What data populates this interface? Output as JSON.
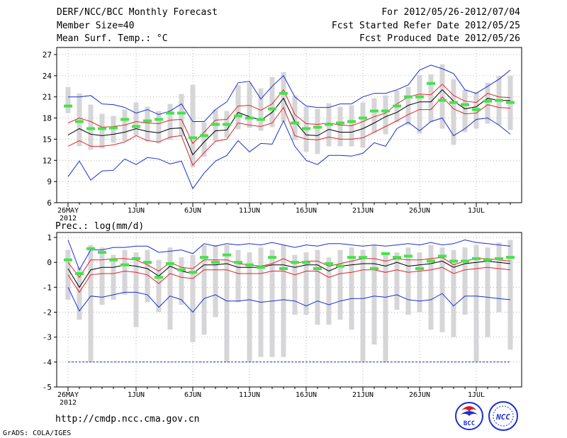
{
  "header": {
    "title_left": "DERF/NCC/BCC Monthly Forecast",
    "member_size": "Member Size=40",
    "var_label": "Mean Surf. Temp.: °C",
    "period": "For 2012/05/26-2012/07/04",
    "start_date": "Fcst Started Refer Date 2012/05/25",
    "produced_date": "Fcst Produced Date 2012/05/26"
  },
  "footer": {
    "url": "http://cmdp.ncc.cma.gov.cn",
    "credit": "GrADS: COLA/IGES",
    "logo_bcc": "BCC",
    "logo_ncc": "NCC"
  },
  "colors": {
    "box": "#d6d6d8",
    "mean": "#000000",
    "std": "#e0242b",
    "minmax": "#1a2fd0",
    "obs": "#44e34a",
    "bg": "#ffffff"
  },
  "chart_data": [
    {
      "type": "line",
      "title": "Mean Surf. Temp.: °C",
      "xlabel": "",
      "ylabel": "°C",
      "x_tick_labels": [
        "26MAY",
        "1JUN",
        "6JUN",
        "11JUN",
        "16JUN",
        "21JUN",
        "26JUN",
        "1JUL"
      ],
      "x_tick_days": [
        0,
        6,
        11,
        16,
        21,
        26,
        31,
        36
      ],
      "year_label": "2012",
      "xlim": [
        -1,
        40
      ],
      "yticks": [
        6,
        9,
        12,
        15,
        18,
        21,
        24,
        27
      ],
      "ylim": [
        6,
        28
      ],
      "x": [
        0,
        1,
        2,
        3,
        4,
        5,
        6,
        7,
        8,
        9,
        10,
        11,
        12,
        13,
        14,
        15,
        16,
        17,
        18,
        19,
        20,
        21,
        22,
        23,
        24,
        25,
        26,
        27,
        28,
        29,
        30,
        31,
        32,
        33,
        34,
        35,
        36,
        37,
        38,
        39
      ],
      "series": [
        {
          "name": "Ensemble max",
          "values": [
            21.0,
            21.0,
            21.2,
            20.0,
            19.9,
            19.5,
            18.7,
            19.2,
            18.5,
            19.0,
            20.0,
            17.5,
            17.5,
            19.2,
            20.3,
            23.0,
            23.2,
            20.7,
            22.5,
            24.0,
            21.0,
            19.7,
            19.5,
            19.5,
            20.0,
            20.0,
            21.0,
            21.5,
            21.5,
            22.0,
            22.7,
            24.8,
            25.5,
            25.0,
            24.3,
            22.0,
            21.5,
            22.5,
            23.5,
            24.8
          ]
        },
        {
          "name": "Mean + std",
          "values": [
            17.3,
            18.0,
            17.5,
            16.7,
            16.8,
            17.0,
            17.5,
            17.3,
            17.2,
            17.7,
            17.8,
            14.4,
            16.0,
            17.7,
            17.8,
            19.7,
            19.8,
            19.1,
            20.0,
            22.0,
            18.5,
            17.2,
            17.1,
            17.3,
            17.0,
            16.9,
            17.5,
            18.2,
            18.7,
            20.0,
            21.0,
            21.4,
            21.3,
            22.8,
            21.2,
            20.4,
            20.2,
            21.5,
            21.0,
            20.9
          ]
        },
        {
          "name": "Ensemble mean",
          "values": [
            15.6,
            16.5,
            15.7,
            15.5,
            15.7,
            16.0,
            16.5,
            16.1,
            15.9,
            16.5,
            16.6,
            12.8,
            14.6,
            16.2,
            16.3,
            18.8,
            18.2,
            17.7,
            18.8,
            20.8,
            17.5,
            15.6,
            15.5,
            16.4,
            16.0,
            16.0,
            16.5,
            17.3,
            18.2,
            18.8,
            19.8,
            20.3,
            20.3,
            22.0,
            20.4,
            19.3,
            19.6,
            20.8,
            20.5,
            20.5
          ]
        },
        {
          "name": "Mean - std",
          "values": [
            14.0,
            14.8,
            14.0,
            14.0,
            14.2,
            14.6,
            15.5,
            14.8,
            14.6,
            15.3,
            15.5,
            11.3,
            13.1,
            14.7,
            15.0,
            17.3,
            17.0,
            16.8,
            17.3,
            19.5,
            15.5,
            15.0,
            14.9,
            15.3,
            15.0,
            15.0,
            15.2,
            16.0,
            16.8,
            17.6,
            18.5,
            19.2,
            19.2,
            21.0,
            19.3,
            18.6,
            18.7,
            19.9,
            19.5,
            19.4
          ]
        },
        {
          "name": "Ensemble min",
          "values": [
            9.7,
            11.9,
            9.2,
            10.5,
            10.6,
            12.2,
            11.4,
            12.4,
            12.2,
            11.5,
            11.9,
            8.0,
            10.2,
            11.9,
            12.7,
            14.8,
            13.2,
            14.4,
            14.3,
            17.6,
            14.0,
            12.0,
            11.4,
            12.7,
            12.7,
            12.6,
            13.0,
            14.5,
            14.0,
            16.5,
            17.4,
            16.2,
            17.5,
            18.0,
            15.5,
            16.5,
            17.8,
            18.0,
            17.0,
            15.7
          ]
        },
        {
          "name": "Box upper",
          "values": [
            22.4,
            21.5,
            19.9,
            18.6,
            18.3,
            19.2,
            20.2,
            19.6,
            19.0,
            20.0,
            21.4,
            22.7,
            17.4,
            19.2,
            19.0,
            22.7,
            23.0,
            22.2,
            23.8,
            24.5,
            21.2,
            19.6,
            19.3,
            20.1,
            19.6,
            19.8,
            20.2,
            20.8,
            21.2,
            21.9,
            22.4,
            24.1,
            24.2,
            25.6,
            23.5,
            22.0,
            21.7,
            23.0,
            24.0,
            24.0
          ]
        },
        {
          "name": "Box lower",
          "values": [
            18.7,
            14.0,
            13.5,
            13.7,
            14.5,
            14.7,
            15.5,
            14.7,
            14.4,
            14.9,
            15.4,
            11.0,
            12.5,
            14.7,
            15.2,
            16.4,
            16.6,
            16.2,
            16.7,
            17.5,
            14.9,
            13.2,
            12.9,
            14.0,
            14.0,
            14.0,
            13.8,
            15.9,
            15.7,
            17.4,
            17.0,
            15.8,
            17.4,
            16.5,
            14.2,
            16.0,
            16.5,
            17.2,
            17.0,
            16.3
          ]
        },
        {
          "name": "Observed/forecast marker",
          "values": [
            19.7,
            17.5,
            16.5,
            16.5,
            16.6,
            17.8,
            16.8,
            17.6,
            17.8,
            18.7,
            18.7,
            15.2,
            15.5,
            17.1,
            17.1,
            18.3,
            18.0,
            17.8,
            19.3,
            21.5,
            17.3,
            16.5,
            16.7,
            17.1,
            17.3,
            17.5,
            18.0,
            19.0,
            19.0,
            19.7,
            21.0,
            21.0,
            22.9,
            20.5,
            20.2,
            19.9,
            19.2,
            20.4,
            20.5,
            20.2
          ]
        }
      ]
    },
    {
      "type": "line",
      "title": "Prec.: log(mm/d)",
      "xlabel": "",
      "ylabel": "log(mm/d)",
      "x_tick_labels": [
        "26MAY",
        "1JUN",
        "6JUN",
        "11JUN",
        "16JUN",
        "21JUN",
        "26JUN",
        "1JUL"
      ],
      "x_tick_days": [
        0,
        6,
        11,
        16,
        21,
        26,
        31,
        36
      ],
      "year_label": "2012",
      "xlim": [
        -1,
        40
      ],
      "yticks": [
        -5,
        -4,
        -3,
        -2,
        -1,
        0,
        1
      ],
      "ylim": [
        -5,
        1.2
      ],
      "x": [
        0,
        1,
        2,
        3,
        4,
        5,
        6,
        7,
        8,
        9,
        10,
        11,
        12,
        13,
        14,
        15,
        16,
        17,
        18,
        19,
        20,
        21,
        22,
        23,
        24,
        25,
        26,
        27,
        28,
        29,
        30,
        31,
        32,
        33,
        34,
        35,
        36,
        37,
        38,
        39
      ],
      "series": [
        {
          "name": "Ensemble max",
          "values": [
            0.9,
            -0.3,
            0.5,
            0.5,
            0.6,
            0.6,
            0.65,
            0.65,
            0.4,
            0.45,
            0.5,
            0.35,
            0.75,
            0.65,
            0.75,
            0.7,
            0.75,
            0.7,
            0.8,
            0.7,
            0.6,
            0.7,
            0.65,
            0.75,
            0.75,
            0.7,
            0.65,
            0.7,
            0.65,
            0.7,
            0.75,
            0.7,
            0.8,
            0.7,
            0.75,
            0.9,
            0.8,
            0.75,
            0.7,
            0.65
          ]
        },
        {
          "name": "Mean + std",
          "values": [
            0.0,
            -0.6,
            0.1,
            0.1,
            0.15,
            0.15,
            0.1,
            -0.1,
            -0.35,
            0.0,
            -0.2,
            -0.25,
            0.1,
            0.1,
            0.1,
            -0.05,
            -0.1,
            -0.15,
            -0.05,
            0.15,
            -0.05,
            0.05,
            0.05,
            -0.15,
            -0.05,
            0.05,
            0.15,
            0.15,
            0.05,
            0.15,
            0.1,
            0.1,
            0.15,
            0.2,
            -0.1,
            0.05,
            0.15,
            0.15,
            0.1,
            0.05
          ]
        },
        {
          "name": "Ensemble mean",
          "values": [
            -0.25,
            -1.0,
            -0.3,
            -0.2,
            -0.2,
            -0.1,
            -0.15,
            -0.25,
            -0.55,
            -0.15,
            -0.35,
            -0.45,
            -0.1,
            -0.1,
            -0.05,
            -0.2,
            -0.2,
            -0.2,
            -0.1,
            -0.1,
            -0.2,
            -0.1,
            -0.1,
            -0.35,
            -0.15,
            -0.1,
            -0.05,
            -0.05,
            -0.15,
            0.0,
            -0.15,
            -0.1,
            -0.05,
            0.05,
            -0.2,
            -0.05,
            0.0,
            0.05,
            0.0,
            -0.05
          ]
        },
        {
          "name": "Mean - std",
          "values": [
            -0.5,
            -1.2,
            -0.5,
            -0.45,
            -0.45,
            -0.35,
            -0.4,
            -0.5,
            -0.85,
            -0.45,
            -0.6,
            -0.65,
            -0.3,
            -0.3,
            -0.3,
            -0.45,
            -0.45,
            -0.45,
            -0.35,
            -0.35,
            -0.5,
            -0.35,
            -0.35,
            -0.6,
            -0.45,
            -0.4,
            -0.3,
            -0.3,
            -0.4,
            -0.3,
            -0.4,
            -0.35,
            -0.3,
            -0.2,
            -0.45,
            -0.3,
            -0.25,
            -0.2,
            -0.25,
            -0.3
          ]
        },
        {
          "name": "Ensemble min",
          "values": [
            -1.0,
            -1.95,
            -1.35,
            -1.4,
            -1.3,
            -1.2,
            -1.2,
            -1.3,
            -1.8,
            -1.35,
            -1.5,
            -2.0,
            -1.45,
            -1.3,
            -1.55,
            -1.55,
            -1.5,
            -1.6,
            -1.55,
            -1.5,
            -1.55,
            -1.75,
            -1.55,
            -1.7,
            -1.55,
            -1.45,
            -1.45,
            -1.35,
            -1.4,
            -1.3,
            -1.5,
            -1.55,
            -1.5,
            -1.25,
            -1.75,
            -1.35,
            -1.35,
            -1.4,
            -1.45,
            -1.5
          ]
        },
        {
          "name": "Lower threshold",
          "values": [
            -4,
            -4,
            -4,
            -4,
            -4,
            -4,
            -4,
            -4,
            -4,
            -4,
            -4,
            -4,
            -4,
            -4,
            -4,
            -4,
            -4,
            -4,
            -4,
            -4,
            -4,
            -4,
            -4,
            -4,
            -4,
            -4,
            -4,
            -4,
            -4,
            -4,
            -4,
            -4,
            -4,
            -4,
            -4,
            -4,
            -4,
            -4,
            -4,
            -4
          ]
        },
        {
          "name": "Box upper",
          "values": [
            0.5,
            -0.2,
            0.7,
            0.6,
            0.3,
            0.5,
            0.4,
            0.5,
            0.1,
            0.6,
            0.2,
            0.3,
            0.7,
            0.7,
            0.7,
            0.5,
            0.4,
            0.6,
            0.5,
            0.7,
            0.3,
            0.4,
            0.5,
            0.2,
            0.5,
            0.6,
            0.5,
            0.7,
            0.4,
            0.4,
            0.6,
            0.4,
            0.7,
            0.6,
            0.5,
            0.6,
            0.7,
            0.6,
            0.8,
            0.9
          ]
        },
        {
          "name": "Box lower",
          "values": [
            -1.5,
            -2.3,
            -4.0,
            -1.7,
            -1.5,
            -1.3,
            -2.6,
            -1.6,
            -2.0,
            -2.7,
            -1.7,
            -3.2,
            -2.9,
            -2.2,
            -4.0,
            -1.6,
            -4.0,
            -3.8,
            -3.8,
            -3.8,
            -2.1,
            -2.1,
            -2.5,
            -2.5,
            -2.3,
            -2.7,
            -4.0,
            -3.3,
            -4.0,
            -1.9,
            -2.1,
            -2.0,
            -2.7,
            -2.8,
            -3.0,
            -2.1,
            -4.0,
            -3.0,
            -2.0,
            -3.5
          ]
        },
        {
          "name": "Observed/forecast marker",
          "values": [
            0.1,
            -0.45,
            0.55,
            0.4,
            0.1,
            -0.1,
            0.15,
            0.0,
            -0.6,
            -0.05,
            -0.3,
            -0.4,
            0.2,
            0.0,
            0.3,
            0.0,
            -0.1,
            -0.2,
            0.2,
            -0.25,
            0.0,
            0.0,
            -0.25,
            -0.05,
            -0.15,
            0.2,
            0.2,
            -0.25,
            0.35,
            0.2,
            0.25,
            -0.25,
            0.05,
            0.25,
            0.05,
            0.05,
            0.15,
            0.1,
            0.15,
            0.2
          ]
        }
      ]
    }
  ]
}
